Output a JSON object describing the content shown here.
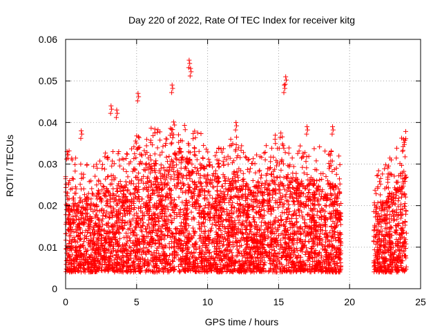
{
  "chart_data": {
    "type": "scatter",
    "title": "Day 220 of 2022, Rate Of TEC Index for receiver kitg",
    "xlabel": "GPS time / hours",
    "ylabel": "ROTI / TECUs",
    "xlim": [
      0,
      25
    ],
    "ylim": [
      0,
      0.06
    ],
    "x_ticks": [
      "0",
      "5",
      "10",
      "15",
      "20",
      "25"
    ],
    "y_ticks": [
      "0",
      "0.01",
      "0.02",
      "0.03",
      "0.04",
      "0.05",
      "0.06"
    ],
    "grid": true,
    "marker": "+",
    "series_color": "#ff0000",
    "data_gap_hours": [
      19.4,
      21.7
    ],
    "notable_peaks": [
      {
        "x": 8.7,
        "y": 0.055
      },
      {
        "x": 8.8,
        "y": 0.053
      },
      {
        "x": 7.5,
        "y": 0.049
      },
      {
        "x": 15.5,
        "y": 0.051
      },
      {
        "x": 15.4,
        "y": 0.049
      },
      {
        "x": 5.1,
        "y": 0.047
      },
      {
        "x": 3.2,
        "y": 0.044
      },
      {
        "x": 3.6,
        "y": 0.043
      },
      {
        "x": 12.0,
        "y": 0.04
      },
      {
        "x": 17.0,
        "y": 0.039
      },
      {
        "x": 18.8,
        "y": 0.039
      },
      {
        "x": 1.1,
        "y": 0.038
      },
      {
        "x": 23.8,
        "y": 0.036
      },
      {
        "x": 0.1,
        "y": 0.033
      }
    ],
    "envelope": [
      {
        "x": 0.0,
        "low": 0.004,
        "high": 0.027
      },
      {
        "x": 1.0,
        "low": 0.004,
        "high": 0.022
      },
      {
        "x": 2.0,
        "low": 0.004,
        "high": 0.022
      },
      {
        "x": 3.0,
        "low": 0.004,
        "high": 0.026
      },
      {
        "x": 4.0,
        "low": 0.004,
        "high": 0.025
      },
      {
        "x": 5.0,
        "low": 0.004,
        "high": 0.03
      },
      {
        "x": 6.0,
        "low": 0.004,
        "high": 0.031
      },
      {
        "x": 7.0,
        "low": 0.004,
        "high": 0.03
      },
      {
        "x": 8.0,
        "low": 0.004,
        "high": 0.034
      },
      {
        "x": 9.0,
        "low": 0.004,
        "high": 0.031
      },
      {
        "x": 10.0,
        "low": 0.004,
        "high": 0.029
      },
      {
        "x": 11.0,
        "low": 0.004,
        "high": 0.027
      },
      {
        "x": 12.0,
        "low": 0.004,
        "high": 0.029
      },
      {
        "x": 13.0,
        "low": 0.004,
        "high": 0.024
      },
      {
        "x": 14.0,
        "low": 0.004,
        "high": 0.026
      },
      {
        "x": 15.0,
        "low": 0.004,
        "high": 0.03
      },
      {
        "x": 16.0,
        "low": 0.004,
        "high": 0.027
      },
      {
        "x": 17.0,
        "low": 0.004,
        "high": 0.026
      },
      {
        "x": 18.0,
        "low": 0.004,
        "high": 0.027
      },
      {
        "x": 19.4,
        "low": 0.004,
        "high": 0.024
      },
      {
        "x": 21.7,
        "low": 0.004,
        "high": 0.02
      },
      {
        "x": 22.5,
        "low": 0.004,
        "high": 0.022
      },
      {
        "x": 23.2,
        "low": 0.004,
        "high": 0.025
      },
      {
        "x": 24.0,
        "low": 0.004,
        "high": 0.031
      }
    ]
  }
}
